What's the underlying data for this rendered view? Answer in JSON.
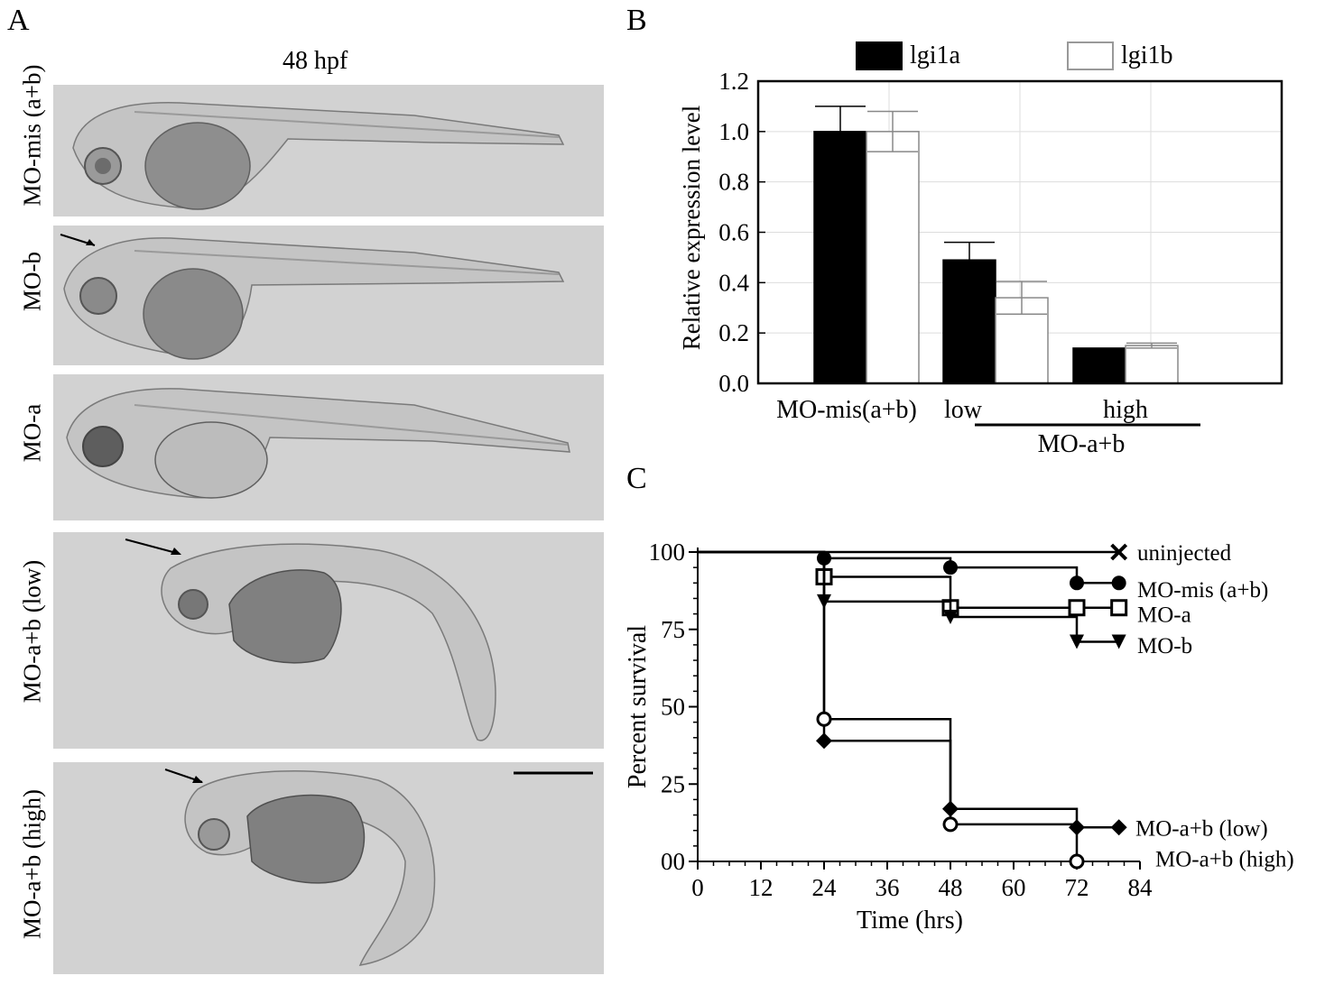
{
  "panel_a": {
    "letter": "A",
    "stage_label": "48 hpf",
    "rows": [
      {
        "label": "MO-mis (a+b)",
        "arrow": false
      },
      {
        "label": "MO-b",
        "arrow": true
      },
      {
        "label": "MO-a",
        "arrow": false
      },
      {
        "label": "MO-a+b (low)",
        "arrow": true
      },
      {
        "label": "MO-a+b (high)",
        "arrow": true
      }
    ]
  },
  "panel_b": {
    "letter": "B"
  },
  "panel_c": {
    "letter": "C"
  },
  "colors": {
    "lgi1a_fill": "#000000",
    "lgi1b_fill": "#ffffff",
    "axis": "#000000",
    "grid": "#dddddd",
    "embryo_bg": "#d2d2d2"
  },
  "chart_data": [
    {
      "type": "bar",
      "panel": "B",
      "categories": [
        "MO-mis(a+b)",
        "low",
        "high"
      ],
      "group_label": "MO-a+b",
      "group_covers": [
        "low",
        "high"
      ],
      "series": [
        {
          "name": "lgi1a",
          "values": [
            1.0,
            0.49,
            0.14
          ],
          "errors": [
            0.1,
            0.07,
            0.0
          ],
          "fill": "#000000"
        },
        {
          "name": "lgi1b",
          "values": [
            1.0,
            0.34,
            0.15
          ],
          "errors": [
            0.08,
            0.065,
            0.01
          ],
          "fill": "#ffffff"
        }
      ],
      "xlabel": "",
      "ylabel": "Relative expression level",
      "ylim": [
        0,
        1.2
      ],
      "yticks": [
        "0.0",
        "0.2",
        "0.4",
        "0.6",
        "0.8",
        "1.0",
        "1.2"
      ],
      "grid": true,
      "legend_position": "top"
    },
    {
      "type": "line",
      "step": true,
      "panel": "C",
      "xlabel": "Time (hrs)",
      "ylabel": "Percent survival",
      "xlim": [
        0,
        84
      ],
      "ylim": [
        0,
        100
      ],
      "xticks": [
        "0",
        "12",
        "24",
        "36",
        "48",
        "60",
        "72",
        "84"
      ],
      "yticks": [
        "00",
        "25",
        "50",
        "75",
        "100"
      ],
      "legend_position": "right, end of each line",
      "series": [
        {
          "name": "uninjected",
          "marker": "x",
          "points": [
            [
              0,
              100
            ],
            [
              80,
              100
            ]
          ]
        },
        {
          "name": "MO-mis (a+b)",
          "marker": "circle-filled",
          "points": [
            [
              0,
              100
            ],
            [
              24,
              98
            ],
            [
              48,
              95
            ],
            [
              72,
              90
            ],
            [
              80,
              90
            ]
          ]
        },
        {
          "name": "MO-a",
          "marker": "square-open",
          "points": [
            [
              0,
              100
            ],
            [
              24,
              92
            ],
            [
              48,
              82
            ],
            [
              72,
              82
            ],
            [
              80,
              82
            ]
          ]
        },
        {
          "name": "MO-b",
          "marker": "triangle-down",
          "points": [
            [
              0,
              100
            ],
            [
              24,
              84
            ],
            [
              48,
              79
            ],
            [
              72,
              71
            ],
            [
              80,
              71
            ]
          ]
        },
        {
          "name": "MO-a+b (low)",
          "marker": "diamond",
          "points": [
            [
              0,
              100
            ],
            [
              24,
              39
            ],
            [
              48,
              17
            ],
            [
              72,
              11
            ],
            [
              80,
              11
            ]
          ]
        },
        {
          "name": "MO-a+b (high)",
          "marker": "circle-open",
          "points": [
            [
              0,
              100
            ],
            [
              24,
              46
            ],
            [
              48,
              12
            ],
            [
              72,
              0
            ]
          ]
        }
      ]
    }
  ]
}
